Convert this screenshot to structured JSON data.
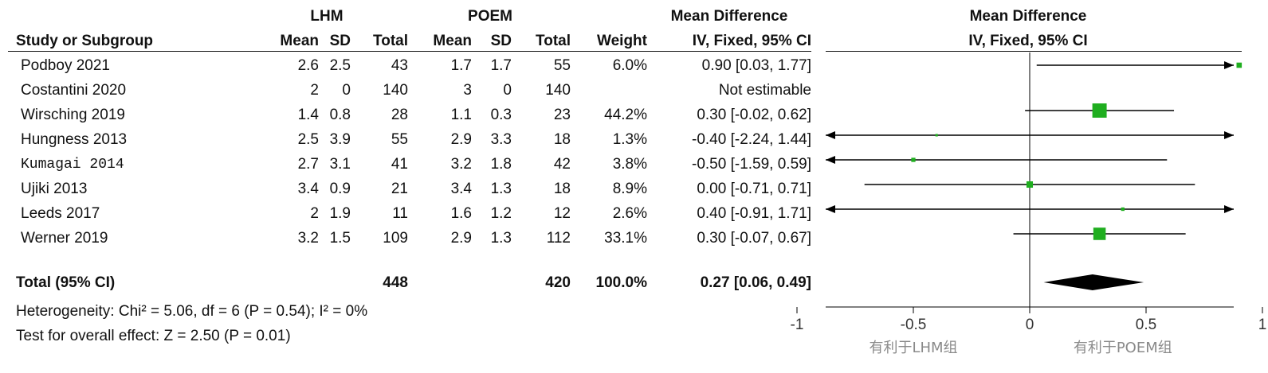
{
  "header": {
    "group1": "LHM",
    "group2": "POEM",
    "md_table": "Mean Difference",
    "md_plot": "Mean Difference",
    "study_col": "Study or Subgroup",
    "mean1": "Mean",
    "sd1": "SD",
    "total1": "Total",
    "mean2": "Mean",
    "sd2": "SD",
    "total2": "Total",
    "weight": "Weight",
    "method_table": "IV, Fixed, 95% CI",
    "method_plot": "IV, Fixed, 95% CI"
  },
  "studies": [
    {
      "name": "Podboy 2021",
      "mean1": "2.6",
      "sd1": "2.5",
      "total1": "43",
      "mean2": "1.7",
      "sd2": "1.7",
      "total2": "55",
      "weight": "6.0%",
      "ci": "0.90 [0.03, 1.77]"
    },
    {
      "name": "Costantini 2020",
      "mean1": "2",
      "sd1": "0",
      "total1": "140",
      "mean2": "3",
      "sd2": "0",
      "total2": "140",
      "weight": "",
      "ci": "Not estimable"
    },
    {
      "name": "Wirsching 2019",
      "mean1": "1.4",
      "sd1": "0.8",
      "total1": "28",
      "mean2": "1.1",
      "sd2": "0.3",
      "total2": "23",
      "weight": "44.2%",
      "ci": "0.30 [-0.02, 0.62]"
    },
    {
      "name": "Hungness 2013",
      "mean1": "2.5",
      "sd1": "3.9",
      "total1": "55",
      "mean2": "2.9",
      "sd2": "3.3",
      "total2": "18",
      "weight": "1.3%",
      "ci": "-0.40 [-2.24, 1.44]"
    },
    {
      "name": "Kumagai 2014",
      "mean1": "2.7",
      "sd1": "3.1",
      "total1": "41",
      "mean2": "3.2",
      "sd2": "1.8",
      "total2": "42",
      "weight": "3.8%",
      "ci": "-0.50 [-1.59, 0.59]"
    },
    {
      "name": "Ujiki 2013",
      "mean1": "3.4",
      "sd1": "0.9",
      "total1": "21",
      "mean2": "3.4",
      "sd2": "1.3",
      "total2": "18",
      "weight": "8.9%",
      "ci": "0.00 [-0.71, 0.71]"
    },
    {
      "name": "Leeds 2017",
      "mean1": "2",
      "sd1": "1.9",
      "total1": "11",
      "mean2": "1.6",
      "sd2": "1.2",
      "total2": "12",
      "weight": "2.6%",
      "ci": "0.40 [-0.91, 1.71]"
    },
    {
      "name": "Werner 2019",
      "mean1": "3.2",
      "sd1": "1.5",
      "total1": "109",
      "mean2": "2.9",
      "sd2": "1.3",
      "total2": "112",
      "weight": "33.1%",
      "ci": "0.30 [-0.07, 0.67]"
    }
  ],
  "total": {
    "label": "Total (95% CI)",
    "total1": "448",
    "total2": "420",
    "weight": "100.0%",
    "ci": "0.27 [0.06, 0.49]"
  },
  "heterogeneity": "Heterogeneity: Chi² = 5.06, df = 6 (P = 0.54); I² = 0%",
  "overall_effect": "Test for overall effect: Z = 2.50 (P = 0.01)",
  "axis": {
    "ticks": [
      "-1",
      "-0.5",
      "0",
      "0.5",
      "1"
    ],
    "favours_left": "有利于LHM组",
    "favours_right": "有利于POEM组"
  },
  "colors": {
    "marker": "#1fae1f",
    "diamond": "#000000",
    "line": "#000000"
  },
  "chart_data": {
    "type": "forest",
    "xlim": [
      -1.75,
      1.75
    ],
    "studies": [
      {
        "name": "Podboy 2021",
        "md": 0.9,
        "lo": 0.03,
        "hi": 1.77,
        "weight": 6.0
      },
      {
        "name": "Costantini 2020",
        "md": null,
        "lo": null,
        "hi": null,
        "weight": null
      },
      {
        "name": "Wirsching 2019",
        "md": 0.3,
        "lo": -0.02,
        "hi": 0.62,
        "weight": 44.2
      },
      {
        "name": "Hungness 2013",
        "md": -0.4,
        "lo": -2.24,
        "hi": 1.44,
        "weight": 1.3
      },
      {
        "name": "Kumagai 2014",
        "md": -0.5,
        "lo": -1.59,
        "hi": 0.59,
        "weight": 3.8
      },
      {
        "name": "Ujiki 2013",
        "md": 0.0,
        "lo": -0.71,
        "hi": 0.71,
        "weight": 8.9
      },
      {
        "name": "Leeds 2017",
        "md": 0.4,
        "lo": -0.91,
        "hi": 1.71,
        "weight": 2.6
      },
      {
        "name": "Werner 2019",
        "md": 0.3,
        "lo": -0.07,
        "hi": 0.67,
        "weight": 33.1
      }
    ],
    "pooled": {
      "md": 0.27,
      "lo": 0.06,
      "hi": 0.49
    },
    "ticks": [
      -1,
      -0.5,
      0,
      0.5,
      1
    ]
  }
}
